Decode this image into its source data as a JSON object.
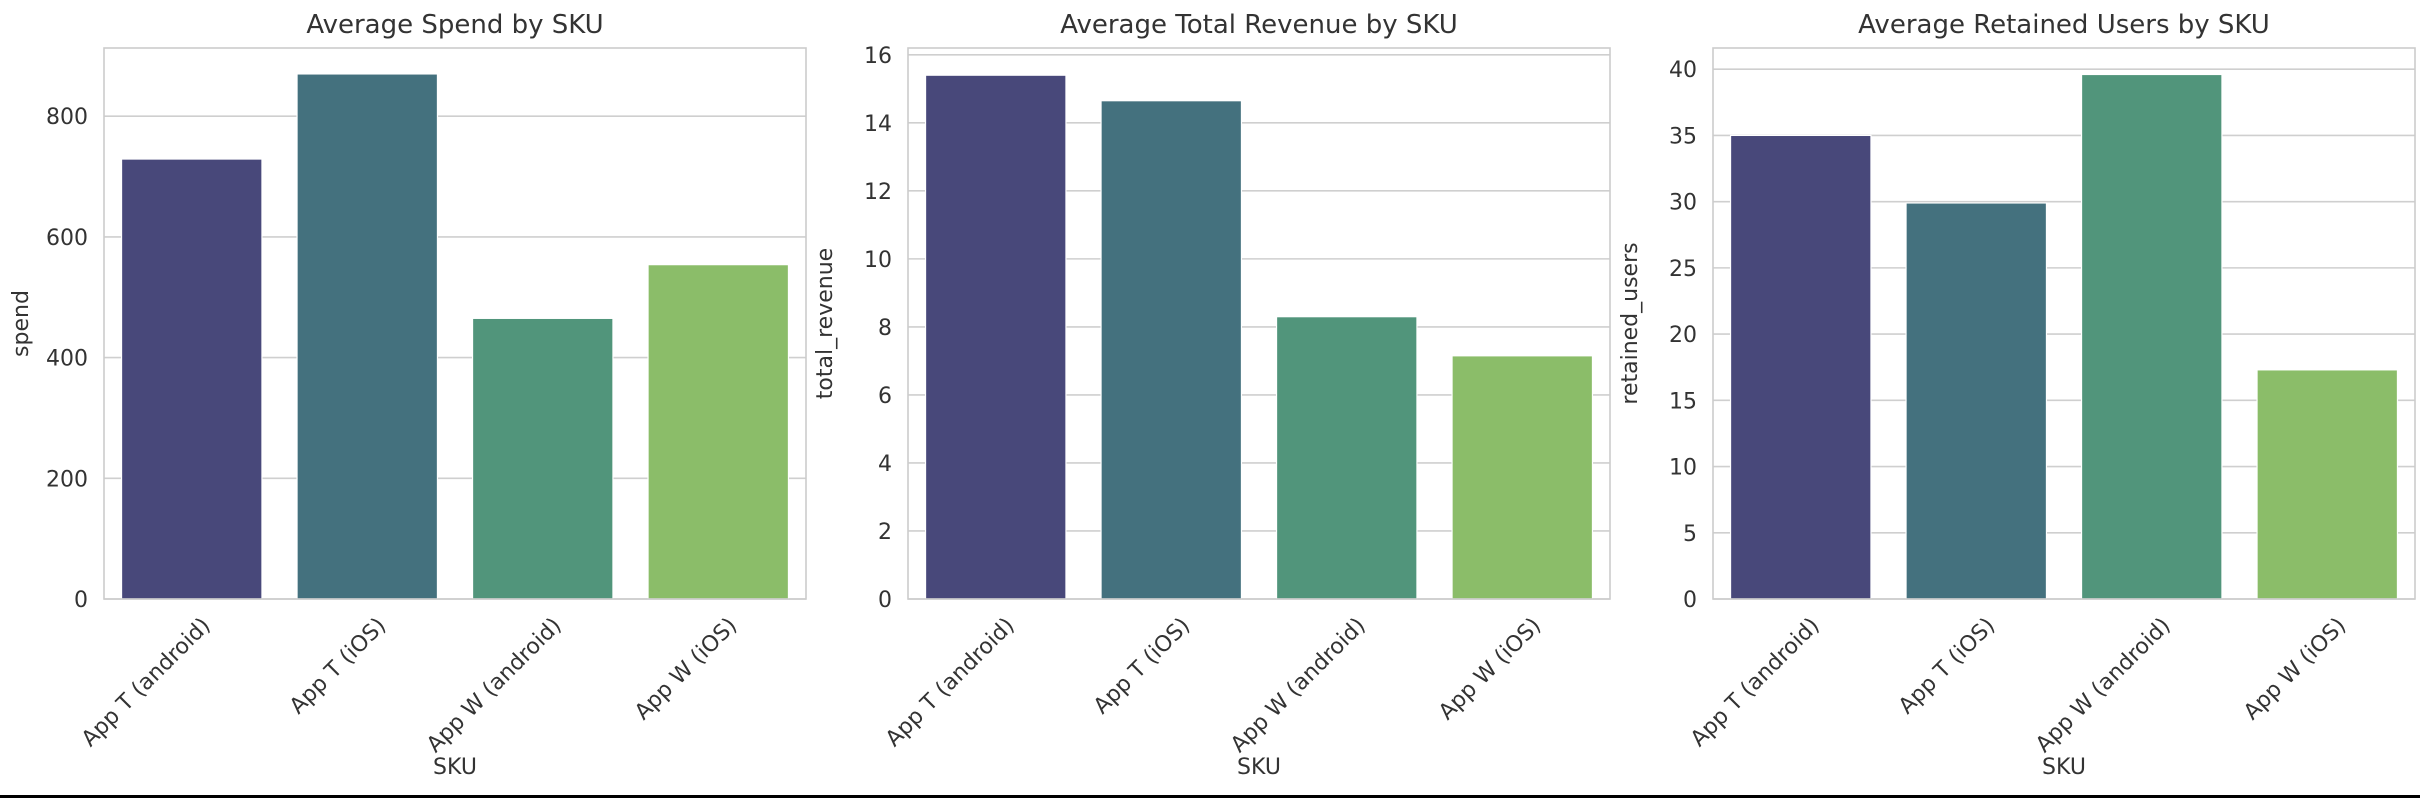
{
  "chart_data": [
    {
      "type": "bar",
      "title": "Average Spend by SKU",
      "xlabel": "SKU",
      "ylabel": "spend",
      "categories": [
        "App T (android)",
        "App T (iOS)",
        "App W (android)",
        "App W (iOS)"
      ],
      "values": [
        729,
        870,
        465,
        554
      ],
      "ylim": [
        0,
        913
      ],
      "yticks": [
        0,
        200,
        400,
        600,
        800
      ],
      "grid": true,
      "colors": [
        "#48487a",
        "#44717e",
        "#51957b",
        "#8bbd69"
      ]
    },
    {
      "type": "bar",
      "title": "Average Total Revenue by SKU",
      "xlabel": "SKU",
      "ylabel": "total_revenue",
      "categories": [
        "App T (android)",
        "App T (iOS)",
        "App W (android)",
        "App W (iOS)"
      ],
      "values": [
        15.4,
        14.65,
        8.3,
        7.15
      ],
      "ylim": [
        0,
        16.2
      ],
      "yticks": [
        0,
        2,
        4,
        6,
        8,
        10,
        12,
        14,
        16
      ],
      "grid": true,
      "colors": [
        "#48487a",
        "#44717e",
        "#51957b",
        "#8bbd69"
      ]
    },
    {
      "type": "bar",
      "title": "Average Retained Users by SKU",
      "xlabel": "SKU",
      "ylabel": "retained_users",
      "categories": [
        "App T (android)",
        "App T (iOS)",
        "App W (android)",
        "App W (iOS)"
      ],
      "values": [
        35.0,
        29.9,
        39.6,
        17.3
      ],
      "ylim": [
        0,
        41.6
      ],
      "yticks": [
        0,
        5,
        10,
        15,
        20,
        25,
        30,
        35,
        40
      ],
      "grid": true,
      "colors": [
        "#48487a",
        "#44717e",
        "#51957b",
        "#8bbd69"
      ]
    }
  ]
}
